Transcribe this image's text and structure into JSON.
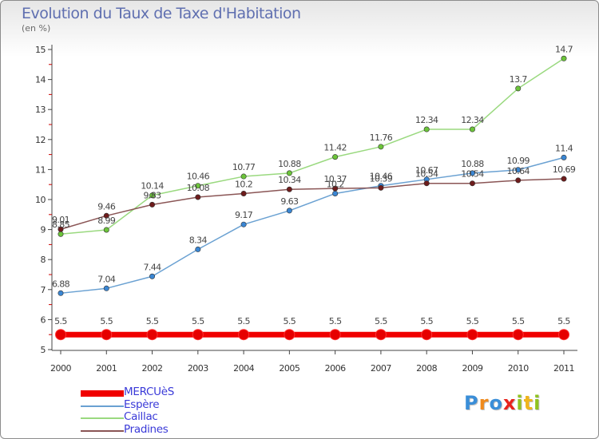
{
  "title": "Evolution du Taux de Taxe d'Habitation",
  "subtitle": "(en %)",
  "logo": {
    "text": "Proxiti",
    "letter_colors": [
      "#3a8ed8",
      "#f08a1c",
      "#3a8ed8",
      "#e8231d",
      "#8fc31f",
      "#f0b51c",
      "#8fc31f"
    ]
  },
  "chart_data": {
    "type": "line",
    "categories": [
      "2000",
      "2001",
      "2002",
      "2003",
      "2004",
      "2005",
      "2006",
      "2007",
      "2008",
      "2009",
      "2010",
      "2011"
    ],
    "ylim": [
      5,
      15
    ],
    "yticks": [
      "5",
      "6",
      "7",
      "8",
      "9",
      "10",
      "11",
      "12",
      "13",
      "14",
      "15"
    ],
    "grid": false,
    "legend_position": "bottom-left",
    "series": [
      {
        "name": "MERCUèS",
        "values": [
          5.5,
          5.5,
          5.5,
          5.5,
          5.5,
          5.5,
          5.5,
          5.5,
          5.5,
          5.5,
          5.5,
          5.5
        ],
        "labels": [
          "5.5",
          "5.5",
          "5.5",
          "5.5",
          "5.5",
          "5.5",
          "5.5",
          "5.5",
          "5.5",
          "5.5",
          "5.5",
          "5.5"
        ],
        "color": "#f00000",
        "marker": "#e60000",
        "thick": true
      },
      {
        "name": "Espère",
        "values": [
          6.88,
          7.04,
          7.44,
          8.34,
          9.17,
          9.63,
          10.2,
          10.46,
          10.67,
          10.88,
          10.99,
          11.4
        ],
        "labels": [
          "6.88",
          "7.04",
          "7.44",
          "8.34",
          "9.17",
          "9.63",
          "10.2",
          "10.46",
          "10.67",
          "10.88",
          "10.99",
          "11.4"
        ],
        "color": "#6aa1d2",
        "marker": "#3a86d3",
        "thick": false
      },
      {
        "name": "Caillac",
        "values": [
          8.85,
          8.99,
          10.14,
          10.46,
          10.77,
          10.88,
          11.42,
          11.76,
          12.34,
          12.34,
          13.7,
          14.7
        ],
        "labels": [
          "8.85",
          "8.99",
          "10.14",
          "10.46",
          "10.77",
          "10.88",
          "11.42",
          "11.76",
          "12.34",
          "12.34",
          "13.7",
          "14.7"
        ],
        "color": "#9ad97f",
        "marker": "#6cc43a",
        "thick": false
      },
      {
        "name": "Pradines",
        "values": [
          9.01,
          9.46,
          9.83,
          10.08,
          10.2,
          10.34,
          10.37,
          10.39,
          10.54,
          10.54,
          10.64,
          10.69
        ],
        "labels": [
          "9.01",
          "9.46",
          "9.83",
          "10.08",
          "10.2",
          "10.34",
          "10.37",
          "10.39",
          "10.54",
          "10.54",
          "10.64",
          "10.69"
        ],
        "color": "#8a5555",
        "marker": "#6e1c1c",
        "thick": false
      }
    ]
  }
}
